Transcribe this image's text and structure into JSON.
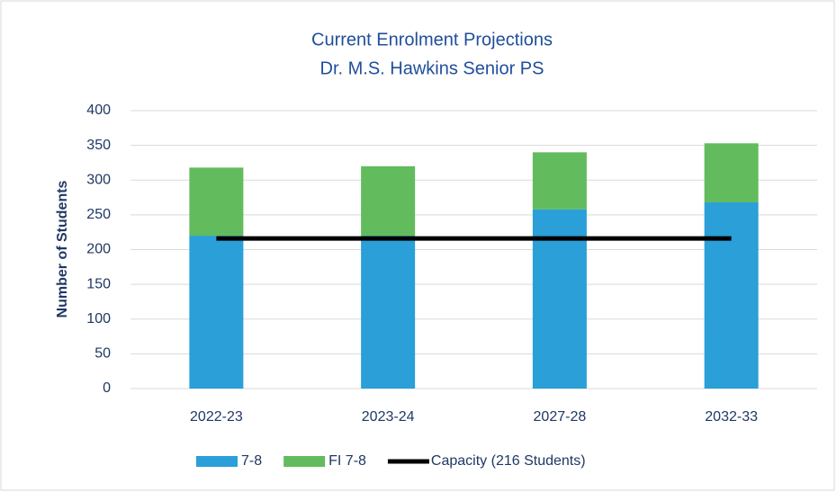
{
  "chart_data": {
    "type": "bar",
    "stacked": true,
    "title": "Current Enrolment Projections",
    "subtitle": "Dr. M.S. Hawkins Senior PS",
    "y_label": "Number of Students",
    "categories": [
      "2022-23",
      "2023-24",
      "2027-28",
      "2032-33"
    ],
    "series": [
      {
        "name": "7-8",
        "color": "#2a9fd8",
        "values": [
          220,
          220,
          258,
          268
        ]
      },
      {
        "name": "FI 7-8",
        "color": "#62bb5d",
        "values": [
          98,
          100,
          82,
          85
        ]
      },
      {
        "name": "Capacity (216 Students)",
        "type": "line",
        "color": "#000000",
        "values": [
          216,
          216,
          216,
          216
        ]
      }
    ],
    "ylim": [
      0,
      400
    ],
    "yticks": [
      0,
      50,
      100,
      150,
      200,
      250,
      300,
      350,
      400
    ],
    "grid": true,
    "legend": "bottom"
  }
}
